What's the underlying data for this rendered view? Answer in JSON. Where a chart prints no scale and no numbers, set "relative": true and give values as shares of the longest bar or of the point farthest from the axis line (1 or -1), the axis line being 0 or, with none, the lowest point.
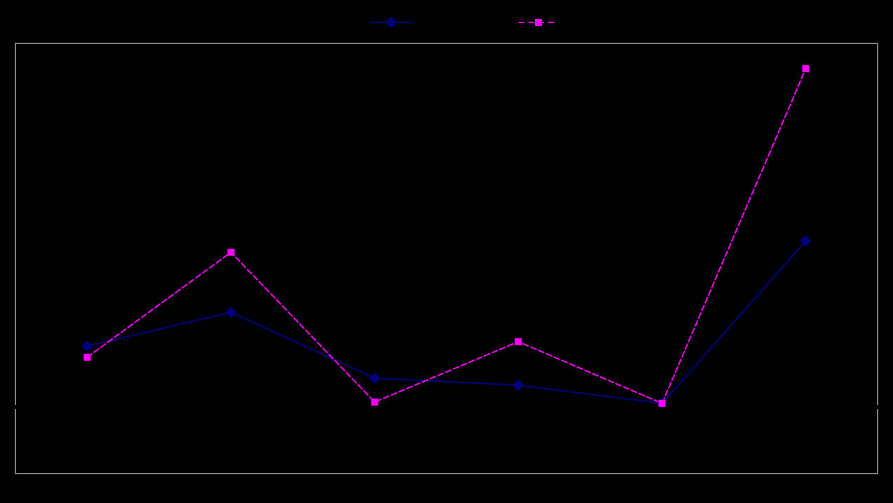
{
  "chart_data": {
    "type": "line",
    "relative": true,
    "grid": false,
    "categories": [
      null,
      null,
      null,
      null,
      null,
      null
    ],
    "series": [
      {
        "color": "#000080",
        "marker": "diamond",
        "line_style": "solid",
        "values": [
          0.178,
          0.278,
          0.083,
          0.062,
          0.008,
          0.49
        ]
      },
      {
        "color": "#ff00ff",
        "marker": "square",
        "line_style": "dashed",
        "values": [
          0.145,
          0.456,
          0.012,
          0.191,
          0.008,
          1
        ]
      }
    ]
  }
}
